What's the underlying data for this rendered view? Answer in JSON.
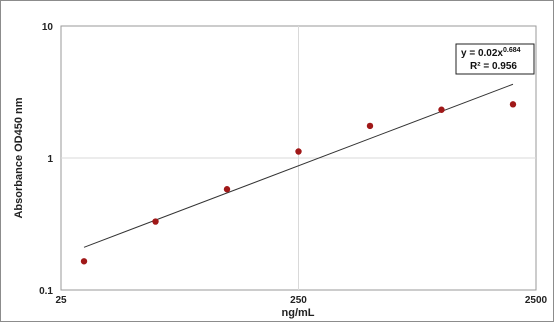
{
  "chart_data": {
    "type": "scatter",
    "xscale": "log",
    "yscale": "log",
    "xlim": [
      25,
      2500
    ],
    "ylim": [
      0.1,
      10
    ],
    "xticks": [
      "25",
      "250",
      "2500"
    ],
    "yticks": [
      "10",
      "1",
      "0.1"
    ],
    "xlabel": "ng/mL",
    "ylabel": "Absorbance OD450 nm",
    "grid": true,
    "series": [
      {
        "color": "#a01818",
        "x": [
          31.25,
          62.5,
          125,
          250,
          500,
          1000,
          2000
        ],
        "y": [
          0.165,
          0.33,
          0.58,
          1.12,
          1.75,
          2.32,
          2.55
        ]
      }
    ],
    "trendline": {
      "type": "power",
      "coef": 0.02,
      "exponent": 0.684,
      "x_range": [
        31.25,
        2000
      ],
      "color": "#333333",
      "equation_prefix": "y = 0.02x",
      "equation_exp": "0.684",
      "r2_label": "R² = 0.956"
    }
  }
}
